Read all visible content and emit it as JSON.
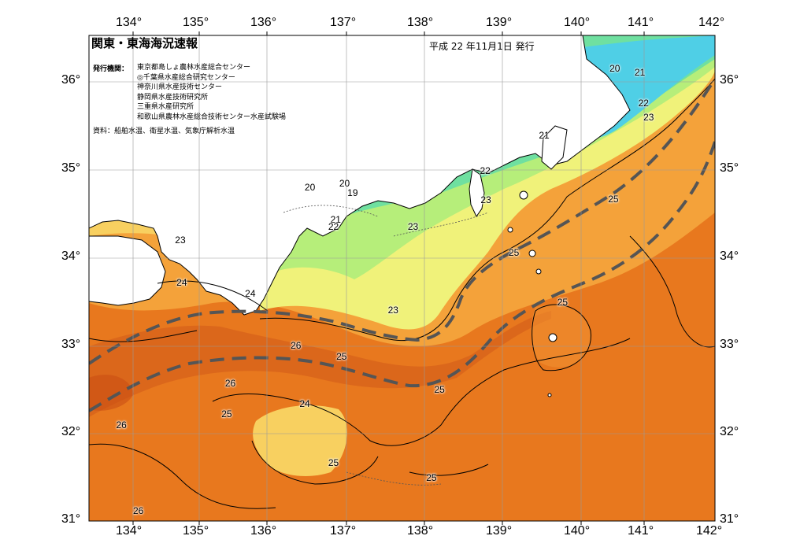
{
  "header": {
    "title": "関東・東海海況速報",
    "date": "平成 22 年11月1日 発行"
  },
  "publishers": {
    "label": "発行機関：",
    "orgs": [
      "東京都島しょ農林水産総合センター",
      "◎千葉県水産総合研究センター",
      "神奈川県水産技術センター",
      "静岡県水産技術研究所",
      "三重県水産研究所",
      "和歌山県農林水産総合技術センター水産試験場"
    ]
  },
  "source": "資料：船舶水温、衛星水温、気象庁解析水温",
  "axes": {
    "lon_ticks": [
      "134°",
      "135°",
      "136°",
      "137°",
      "138°",
      "139°",
      "140°",
      "141°",
      "142°"
    ],
    "lat_ticks": [
      "36°",
      "35°",
      "34°",
      "33°",
      "32°",
      "31°"
    ]
  },
  "contour_labels": [
    {
      "text": "20",
      "lon": 140.64,
      "lat": 36.13
    },
    {
      "text": "21",
      "lon": 140.98,
      "lat": 36.08
    },
    {
      "text": "22",
      "lon": 141.03,
      "lat": 35.73
    },
    {
      "text": "23",
      "lon": 141.1,
      "lat": 35.57
    },
    {
      "text": "21",
      "lon": 139.68,
      "lat": 35.37
    },
    {
      "text": "22",
      "lon": 138.88,
      "lat": 34.97
    },
    {
      "text": "20",
      "lon": 136.5,
      "lat": 34.78
    },
    {
      "text": "20",
      "lon": 136.97,
      "lat": 34.82
    },
    {
      "text": "19",
      "lon": 137.08,
      "lat": 34.72
    },
    {
      "text": "21",
      "lon": 136.85,
      "lat": 34.41
    },
    {
      "text": "22",
      "lon": 136.82,
      "lat": 34.33
    },
    {
      "text": "23",
      "lon": 138.89,
      "lat": 34.64
    },
    {
      "text": "25",
      "lon": 140.62,
      "lat": 34.65
    },
    {
      "text": "23",
      "lon": 137.9,
      "lat": 34.33
    },
    {
      "text": "25",
      "lon": 139.27,
      "lat": 34.04
    },
    {
      "text": "23",
      "lon": 134.74,
      "lat": 34.18
    },
    {
      "text": "24",
      "lon": 134.76,
      "lat": 33.7
    },
    {
      "text": "24",
      "lon": 135.69,
      "lat": 33.58
    },
    {
      "text": "23",
      "lon": 137.63,
      "lat": 33.39
    },
    {
      "text": "25",
      "lon": 139.93,
      "lat": 33.48
    },
    {
      "text": "26",
      "lon": 136.31,
      "lat": 32.99
    },
    {
      "text": "25",
      "lon": 136.93,
      "lat": 32.86
    },
    {
      "text": "26",
      "lon": 135.42,
      "lat": 32.56
    },
    {
      "text": "25",
      "lon": 138.26,
      "lat": 32.49
    },
    {
      "text": "24",
      "lon": 136.43,
      "lat": 32.33
    },
    {
      "text": "25",
      "lon": 135.37,
      "lat": 32.21
    },
    {
      "text": "26",
      "lon": 133.94,
      "lat": 32.09
    },
    {
      "text": "25",
      "lon": 136.82,
      "lat": 31.66
    },
    {
      "text": "25",
      "lon": 138.15,
      "lat": 31.49
    },
    {
      "text": "26",
      "lon": 134.17,
      "lat": 31.12
    }
  ],
  "legend_colors": {
    "t19": "#27b4dc",
    "t20": "#4fcfe6",
    "t21": "#6fe0a0",
    "t22": "#b6ee7a",
    "t23": "#f0f27a",
    "t24": "#f8d060",
    "t25": "#f4a23a",
    "t26": "#e8781e",
    "t27": "#d6601a",
    "land": "#ffffff",
    "kuroshio_axis": "#555555"
  }
}
